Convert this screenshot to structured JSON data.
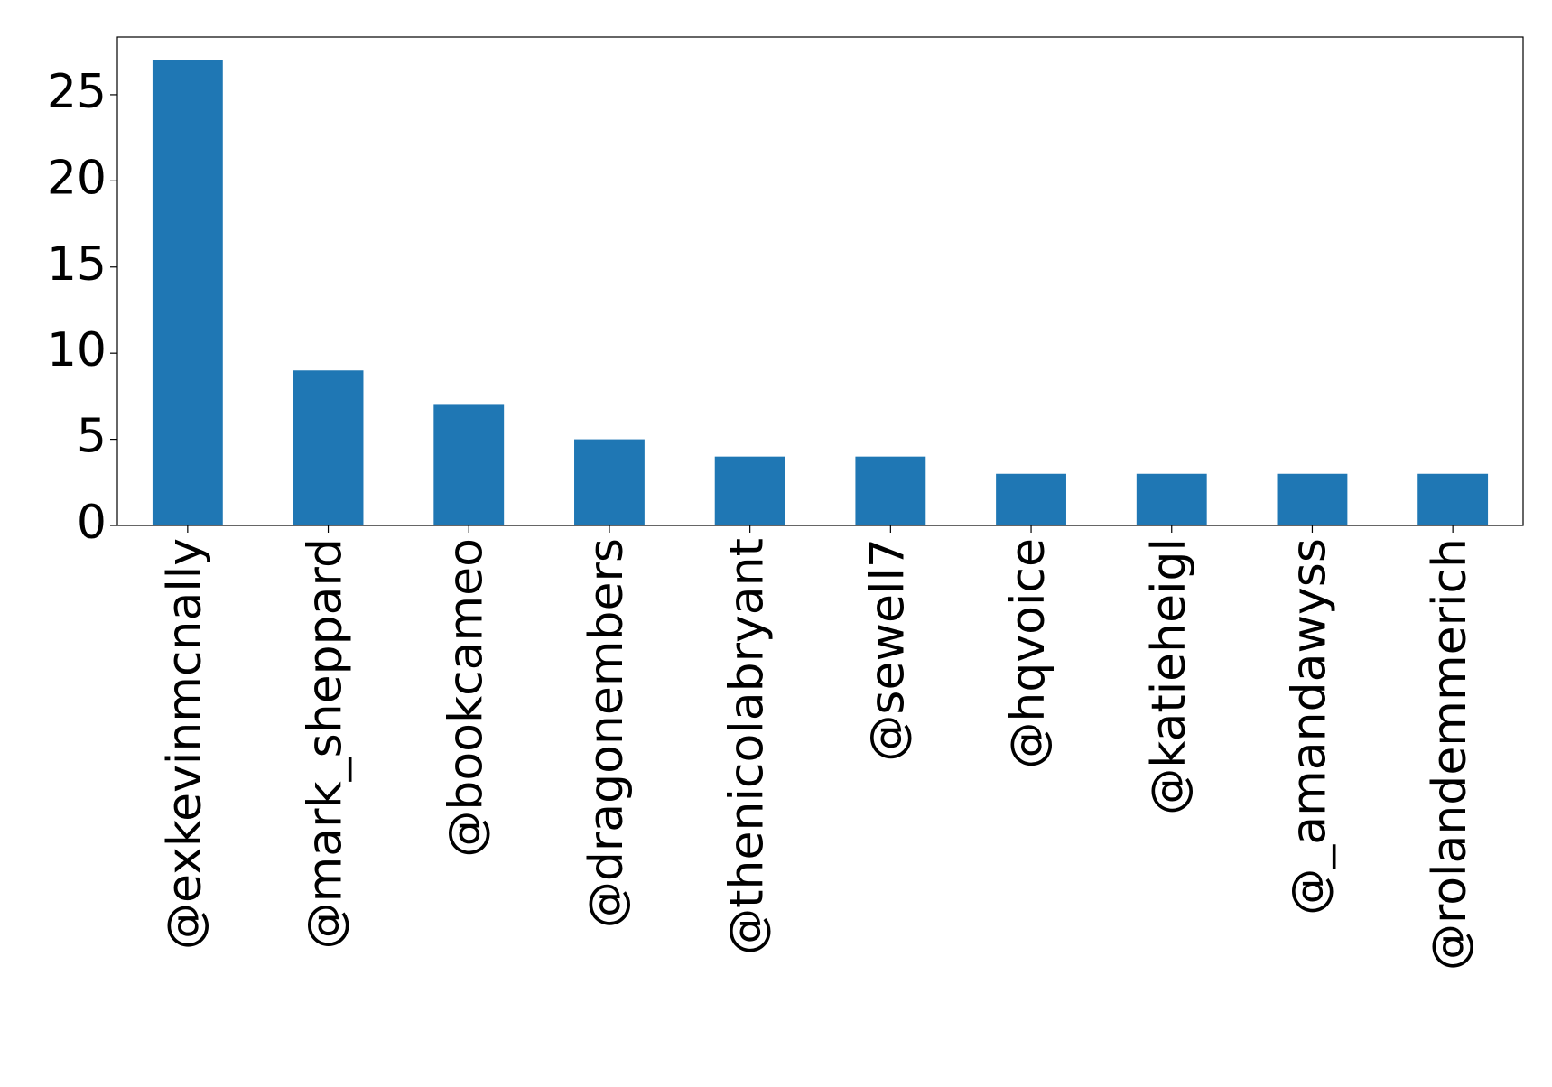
{
  "chart_data": {
    "type": "bar",
    "categories": [
      "@exkevinmcnally",
      "@mark_sheppard",
      "@bookcameo",
      "@dragonembers",
      "@thenicolabryant",
      "@sewell7",
      "@hqvoice",
      "@katieheigl",
      "@_amandawyss",
      "@rolandemmerich"
    ],
    "values": [
      27,
      9,
      7,
      5,
      4,
      4,
      3,
      3,
      3,
      3
    ],
    "color": "#1f77b4",
    "ylim": [
      0,
      28.35
    ],
    "yticks": [
      0,
      5,
      10,
      15,
      20,
      25
    ],
    "grid": false
  }
}
